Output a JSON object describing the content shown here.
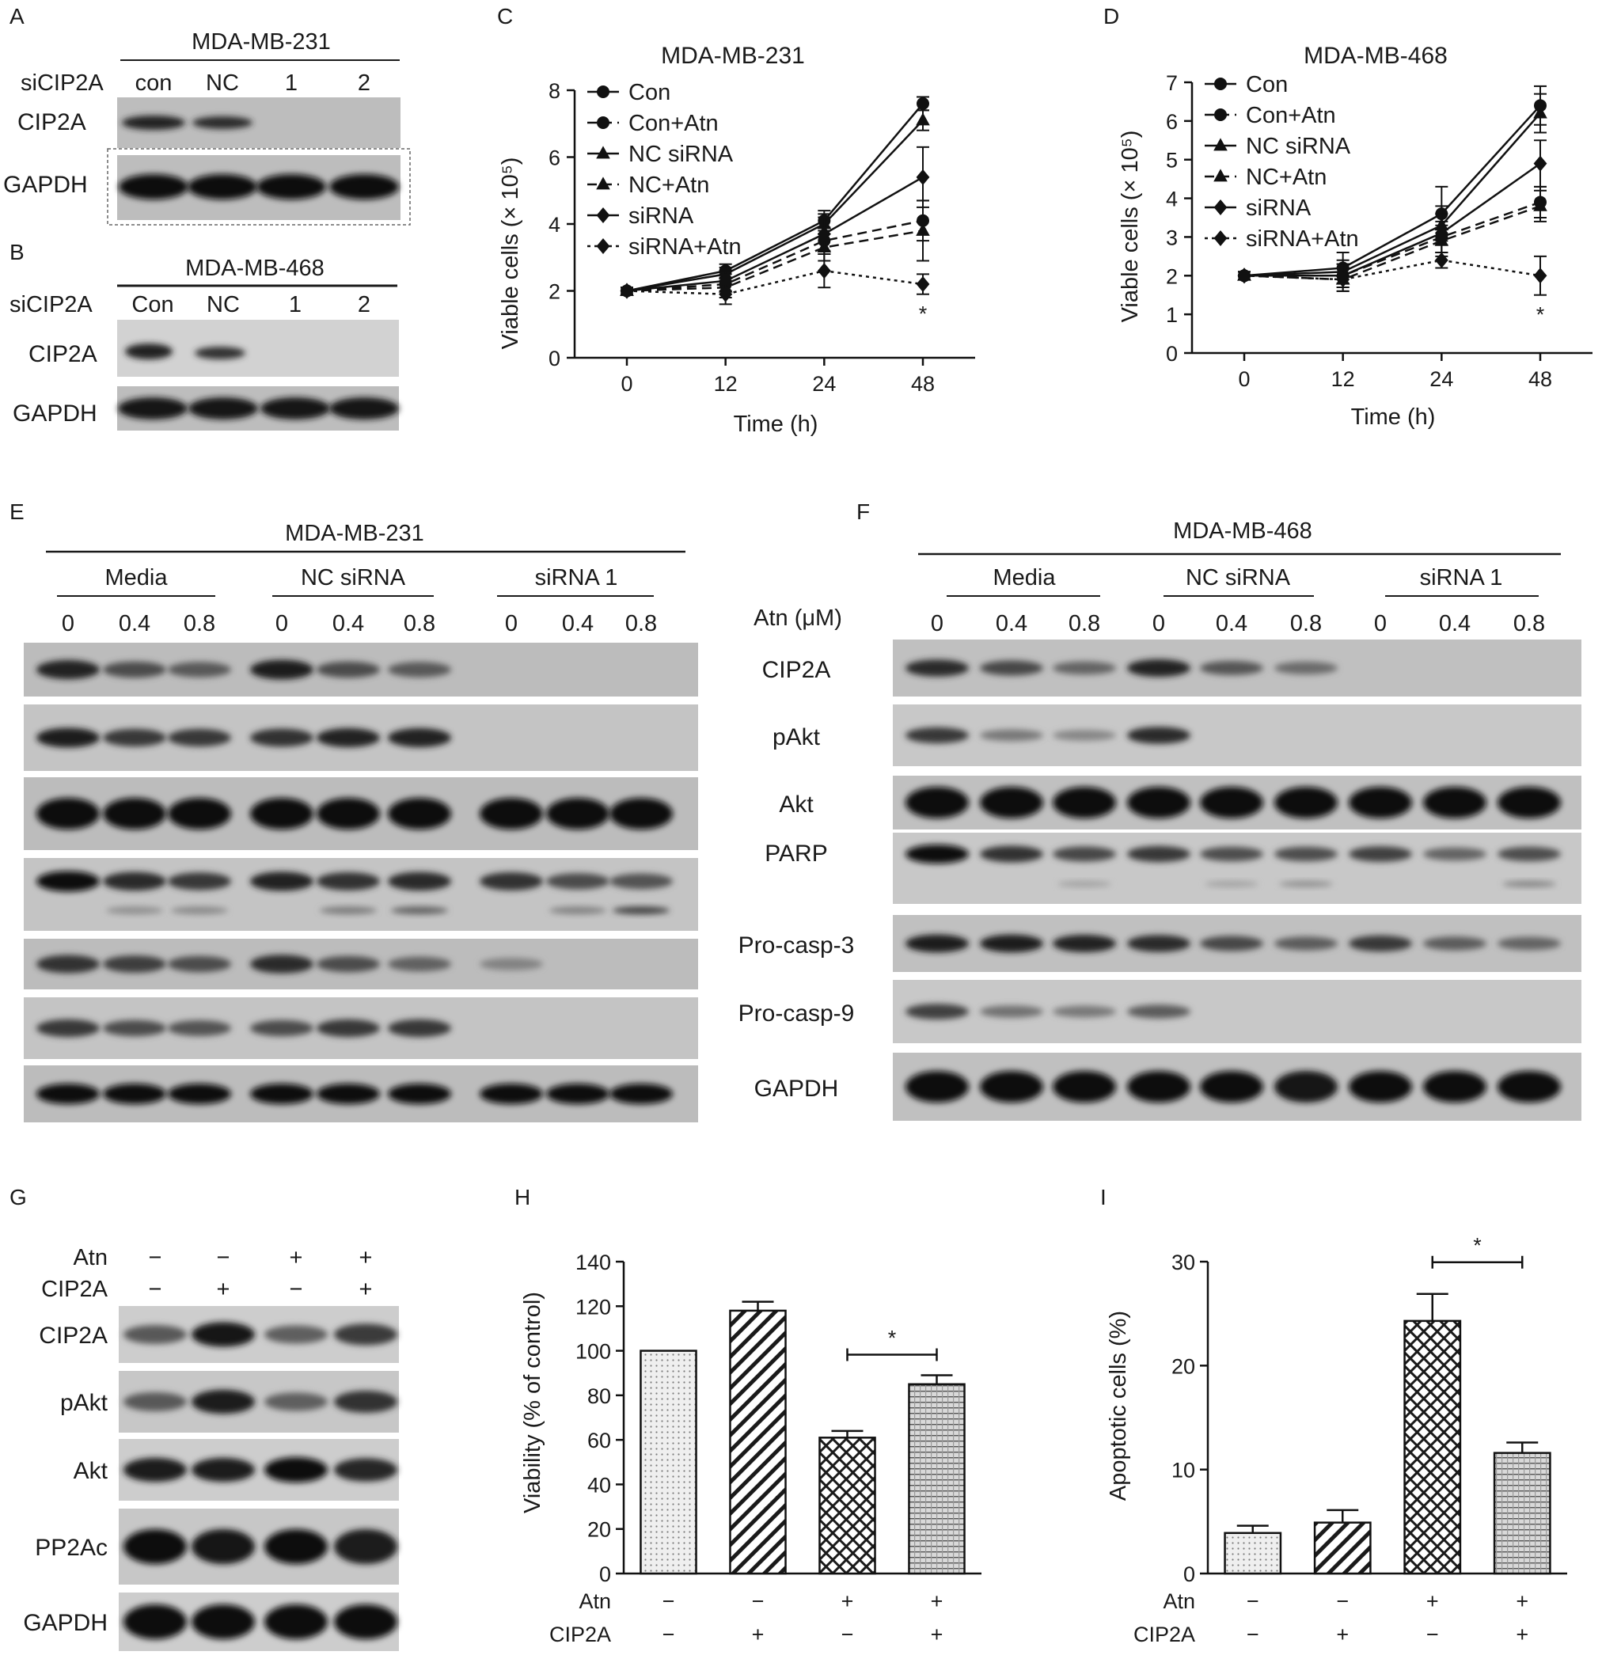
{
  "panels": {
    "A": {
      "label": "A",
      "cell_line": "MDA-MB-231",
      "row_label": "siCIP2A",
      "lanes": [
        "con",
        "NC",
        "1",
        "2"
      ],
      "proteins": [
        "CIP2A",
        "GAPDH"
      ]
    },
    "B": {
      "label": "B",
      "cell_line": "MDA-MB-468",
      "row_label": "siCIP2A",
      "lanes": [
        "Con",
        "NC",
        "1",
        "2"
      ],
      "proteins": [
        "CIP2A",
        "GAPDH"
      ]
    },
    "C": {
      "label": "C",
      "title": "MDA-MB-231"
    },
    "D": {
      "label": "D",
      "title": "MDA-MB-468"
    },
    "E": {
      "label": "E",
      "cell_line": "MDA-MB-231",
      "groups": [
        "Media",
        "NC siRNA",
        "siRNA 1"
      ],
      "doses": [
        "0",
        "0.4",
        "0.8"
      ]
    },
    "F": {
      "label": "F",
      "cell_line": "MDA-MB-468",
      "groups": [
        "Media",
        "NC siRNA",
        "siRNA 1"
      ],
      "doses": [
        "0",
        "0.4",
        "0.8"
      ],
      "dose_label": "Atn (μM)",
      "proteins": [
        "CIP2A",
        "pAkt",
        "Akt",
        "PARP",
        "Pro-casp-3",
        "Pro-casp-9",
        "GAPDH"
      ]
    },
    "G": {
      "label": "G",
      "rows": [
        {
          "name": "Atn",
          "signs": [
            "−",
            "−",
            "+",
            "+"
          ]
        },
        {
          "name": "CIP2A",
          "signs": [
            "−",
            "+",
            "−",
            "+"
          ]
        }
      ],
      "proteins": [
        "CIP2A",
        "pAkt",
        "Akt",
        "PP2Ac",
        "GAPDH"
      ]
    },
    "H": {
      "label": "H"
    },
    "I": {
      "label": "I"
    }
  },
  "chart_data": [
    {
      "panel": "C",
      "type": "line",
      "title": "MDA-MB-231",
      "xlabel": "Time (h)",
      "ylabel": "Viable cells (× 10⁵)",
      "x": [
        0,
        12,
        24,
        48
      ],
      "xticks": [
        "0",
        "12",
        "24",
        "48"
      ],
      "yticks": [
        "0",
        "2",
        "4",
        "6",
        "8"
      ],
      "ylim": [
        0,
        8
      ],
      "legend_position": "top-left",
      "significance": "*",
      "series": [
        {
          "name": "Con",
          "values": [
            2.0,
            2.6,
            4.1,
            7.6
          ],
          "err": [
            0.1,
            0.2,
            0.3,
            0.2
          ],
          "marker": "circle",
          "dash": "solid"
        },
        {
          "name": "Con+Atn",
          "values": [
            2.0,
            2.2,
            3.5,
            4.1
          ],
          "err": [
            0.1,
            0.3,
            0.4,
            0.6
          ],
          "marker": "circle",
          "dash": "dashed"
        },
        {
          "name": "NC siRNA",
          "values": [
            2.0,
            2.5,
            4.0,
            7.1
          ],
          "err": [
            0.1,
            0.2,
            0.3,
            0.3
          ],
          "marker": "triangle",
          "dash": "solid"
        },
        {
          "name": "NC+Atn",
          "values": [
            2.0,
            2.1,
            3.3,
            3.8
          ],
          "err": [
            0.1,
            0.3,
            0.4,
            0.9
          ],
          "marker": "triangle",
          "dash": "dashed"
        },
        {
          "name": "siRNA",
          "values": [
            2.0,
            2.3,
            3.7,
            5.4
          ],
          "err": [
            0.1,
            0.3,
            0.5,
            0.9
          ],
          "marker": "diamond",
          "dash": "solid"
        },
        {
          "name": "siRNA+Atn",
          "values": [
            2.0,
            1.9,
            2.6,
            2.2
          ],
          "err": [
            0.1,
            0.3,
            0.5,
            0.3
          ],
          "marker": "diamond",
          "dash": "dotted"
        }
      ]
    },
    {
      "panel": "D",
      "type": "line",
      "title": "MDA-MB-468",
      "xlabel": "Time (h)",
      "ylabel": "Viable cells (× 10⁵)",
      "x": [
        0,
        12,
        24,
        48
      ],
      "xticks": [
        "0",
        "12",
        "24",
        "48"
      ],
      "yticks": [
        "0",
        "1",
        "2",
        "3",
        "4",
        "5",
        "6",
        "7"
      ],
      "ylim": [
        0,
        7
      ],
      "legend_position": "top-left",
      "significance": "*",
      "series": [
        {
          "name": "Con",
          "values": [
            2.0,
            2.2,
            3.6,
            6.4
          ],
          "err": [
            0.1,
            0.4,
            0.7,
            0.5
          ],
          "marker": "circle",
          "dash": "solid"
        },
        {
          "name": "Con+Atn",
          "values": [
            2.0,
            2.0,
            3.0,
            3.9
          ],
          "err": [
            0.1,
            0.3,
            0.4,
            0.4
          ],
          "marker": "circle",
          "dash": "dashed"
        },
        {
          "name": "NC siRNA",
          "values": [
            2.0,
            2.1,
            3.3,
            6.2
          ],
          "err": [
            0.1,
            0.3,
            0.5,
            0.5
          ],
          "marker": "triangle",
          "dash": "solid"
        },
        {
          "name": "NC+Atn",
          "values": [
            2.0,
            1.9,
            2.9,
            3.8
          ],
          "err": [
            0.1,
            0.3,
            0.4,
            0.4
          ],
          "marker": "triangle",
          "dash": "dashed"
        },
        {
          "name": "siRNA",
          "values": [
            2.0,
            2.0,
            3.1,
            4.9
          ],
          "err": [
            0.1,
            0.3,
            0.5,
            0.6
          ],
          "marker": "diamond",
          "dash": "solid"
        },
        {
          "name": "siRNA+Atn",
          "values": [
            2.0,
            1.9,
            2.4,
            2.0
          ],
          "err": [
            0.1,
            0.3,
            0.2,
            0.5
          ],
          "marker": "diamond",
          "dash": "dotted"
        }
      ]
    },
    {
      "panel": "H",
      "type": "bar",
      "ylabel": "Viability (% of control)",
      "ylim": [
        0,
        140
      ],
      "yticks": [
        "0",
        "20",
        "40",
        "60",
        "80",
        "100",
        "120",
        "140"
      ],
      "values": [
        100,
        118,
        61,
        85
      ],
      "err": [
        0,
        4,
        3,
        4
      ],
      "patterns": [
        "dots",
        "diagonal",
        "crosshatch",
        "grid"
      ],
      "conditions": [
        {
          "name": "Atn",
          "signs": [
            "−",
            "−",
            "+",
            "+"
          ]
        },
        {
          "name": "CIP2A",
          "signs": [
            "−",
            "+",
            "−",
            "+"
          ]
        }
      ],
      "significance": {
        "between": [
          2,
          3
        ],
        "label": "*"
      }
    },
    {
      "panel": "I",
      "type": "bar",
      "ylabel": "Apoptotic cells (%)",
      "ylim": [
        0,
        30
      ],
      "yticks": [
        "0",
        "10",
        "20",
        "30"
      ],
      "values": [
        3.9,
        4.9,
        24.3,
        11.6
      ],
      "err": [
        0.7,
        1.2,
        2.6,
        1.0
      ],
      "patterns": [
        "dots",
        "diagonal",
        "crosshatch",
        "grid"
      ],
      "conditions": [
        {
          "name": "Atn",
          "signs": [
            "−",
            "−",
            "+",
            "+"
          ]
        },
        {
          "name": "CIP2A",
          "signs": [
            "−",
            "+",
            "−",
            "+"
          ]
        }
      ],
      "significance": {
        "between": [
          2,
          3
        ],
        "label": "*"
      }
    }
  ]
}
